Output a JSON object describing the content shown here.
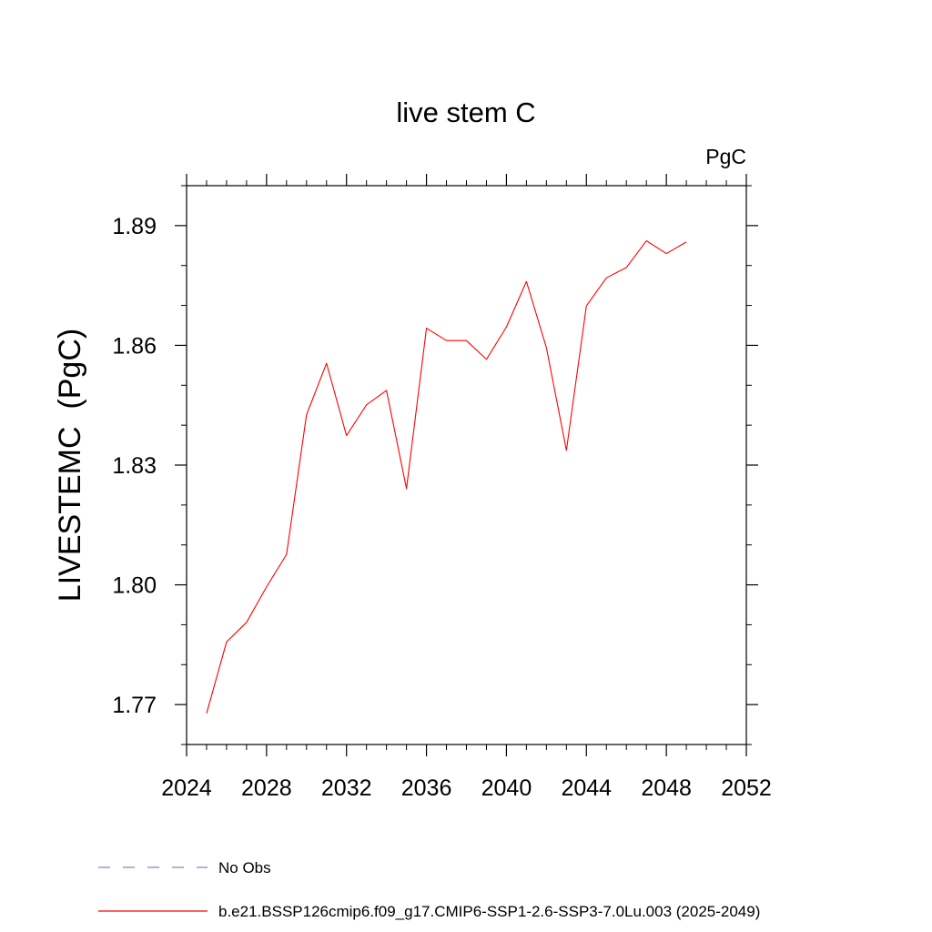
{
  "chart_data": {
    "type": "line",
    "title": "live stem C",
    "units_label": "PgC",
    "ylabel": "LIVESTEMC  (PgC)",
    "xlabel": "",
    "xlim": [
      2024,
      2052
    ],
    "ylim": [
      1.76,
      1.9
    ],
    "x_ticks": [
      2024,
      2028,
      2032,
      2036,
      2040,
      2044,
      2048,
      2052
    ],
    "x_tick_labels": [
      "2024",
      "2028",
      "2032",
      "2036",
      "2040",
      "2044",
      "2048",
      "2052"
    ],
    "y_ticks": [
      1.77,
      1.8,
      1.83,
      1.86,
      1.89
    ],
    "y_tick_labels": [
      "1.77",
      "1.80",
      "1.83",
      "1.86",
      "1.89"
    ],
    "series": [
      {
        "name": "b.e21.BSSP126cmip6.f09_g17.CMIP6-SSP1-2.6-SSP3-7.0Lu.003 (2025-2049)",
        "color": "#ff0000",
        "x": [
          2025,
          2026,
          2027,
          2028,
          2029,
          2030,
          2031,
          2032,
          2033,
          2034,
          2035,
          2036,
          2037,
          2038,
          2039,
          2040,
          2041,
          2042,
          2043,
          2044,
          2045,
          2046,
          2047,
          2048,
          2049
        ],
        "values": [
          1.7678,
          1.7857,
          1.7906,
          1.7995,
          1.8076,
          1.8426,
          1.8555,
          1.8374,
          1.8451,
          1.8487,
          1.8241,
          1.8643,
          1.8612,
          1.8612,
          1.8565,
          1.8646,
          1.876,
          1.8594,
          1.8337,
          1.8699,
          1.8769,
          1.8795,
          1.8862,
          1.883,
          1.8859
        ]
      }
    ],
    "legend": [
      {
        "label": "No Obs",
        "color": "#8a82c4",
        "style": "dashed"
      },
      {
        "label": "b.e21.BSSP126cmip6.f09_g17.CMIP6-SSP1-2.6-SSP3-7.0Lu.003 (2025-2049)",
        "color": "#ff0000",
        "style": "solid"
      }
    ],
    "legend_position": "bottom-left",
    "grid": false
  }
}
